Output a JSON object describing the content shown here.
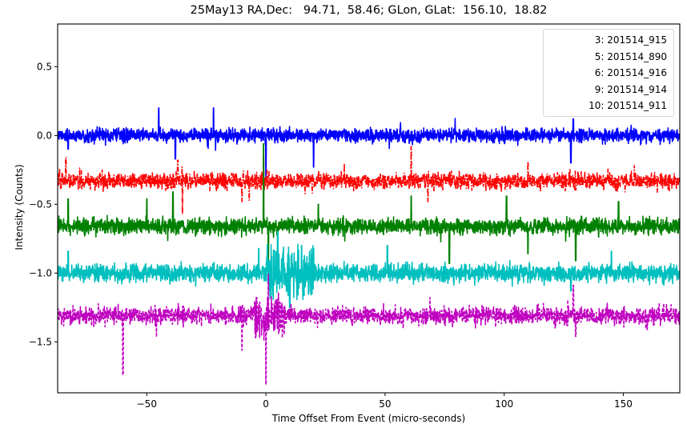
{
  "chart_data": {
    "type": "line",
    "title": "25May13 RA,Dec:   94.71,  58.46; GLon, GLat:  156.10,  18.82",
    "xlabel": "Time Offset From Event (micro-seconds)",
    "ylabel": "Intensity (Counts)",
    "xlim": [
      -87.4,
      173.7
    ],
    "ylim": [
      -1.87,
      0.81
    ],
    "xticks": [
      -50,
      0,
      50,
      100,
      150
    ],
    "xtick_labels": [
      "−50",
      "0",
      "50",
      "100",
      "150"
    ],
    "yticks": [
      0.5,
      0.0,
      -0.5,
      -1.0,
      -1.5
    ],
    "ytick_labels": [
      "0.5",
      "0.0",
      "−0.5",
      "−1.0",
      "−1.5"
    ],
    "grid": false,
    "legend_position": "upper right",
    "series": [
      {
        "name": "3: 201514_915",
        "color": "#0000ff",
        "linestyle": "solid",
        "baseline": 0.0,
        "noise": 0.035,
        "spikes": [
          [
            -83,
            -0.1
          ],
          [
            -45,
            0.2
          ],
          [
            -38,
            -0.17
          ],
          [
            -22,
            0.2
          ],
          [
            0,
            0.31
          ],
          [
            0,
            -0.3
          ],
          [
            20,
            0.27
          ],
          [
            20,
            -0.23
          ],
          [
            128,
            -0.2
          ],
          [
            129,
            0.12
          ]
        ]
      },
      {
        "name": "5: 201514_890",
        "color": "#ff0000",
        "linestyle": "dashdot",
        "baseline": -0.33,
        "noise": 0.04,
        "spikes": [
          [
            -84,
            0.17
          ],
          [
            -35,
            -0.24
          ],
          [
            -37,
            0.15
          ],
          [
            -10,
            -0.15
          ],
          [
            -7,
            -0.14
          ],
          [
            -1,
            0.18
          ],
          [
            61,
            0.25
          ],
          [
            68,
            -0.15
          ],
          [
            110,
            0.14
          ]
        ]
      },
      {
        "name": "6: 201514_916",
        "color": "#008000",
        "linestyle": "solid",
        "baseline": -0.66,
        "noise": 0.04,
        "spikes": [
          [
            -83,
            0.2
          ],
          [
            -50,
            0.2
          ],
          [
            -39,
            0.25
          ],
          [
            -1,
            0.6
          ],
          [
            1,
            -0.25
          ],
          [
            22,
            0.16
          ],
          [
            61,
            0.22
          ],
          [
            77,
            -0.27
          ],
          [
            101,
            0.22
          ],
          [
            110,
            -0.2
          ],
          [
            130,
            -0.25
          ],
          [
            148,
            -0.25
          ],
          [
            148,
            0.18
          ]
        ]
      },
      {
        "name": "9: 201514_914",
        "color": "#00bfbf",
        "linestyle": "solid",
        "baseline": -1.0,
        "noise": 0.045,
        "spikes": [
          [
            -83,
            0.16
          ],
          [
            -3,
            0.18
          ],
          [
            5,
            0.3
          ],
          [
            10,
            -0.25
          ],
          [
            15,
            0.2
          ],
          [
            20,
            0.18
          ],
          [
            51,
            0.2
          ],
          [
            128,
            -0.13
          ],
          [
            145,
            0.16
          ]
        ],
        "burst": [
          0,
          20,
          0.09
        ]
      },
      {
        "name": "10: 201514_911",
        "color": "#bf00bf",
        "linestyle": "dashed",
        "baseline": -1.31,
        "noise": 0.045,
        "spikes": [
          [
            -60,
            0.36
          ],
          [
            -60,
            -0.43
          ],
          [
            -10,
            -0.25
          ],
          [
            0,
            -0.5
          ],
          [
            1,
            0.3
          ],
          [
            5,
            0.12
          ],
          [
            129,
            0.22
          ],
          [
            130,
            -0.15
          ],
          [
            160,
            -0.1
          ]
        ],
        "burst": [
          -5,
          8,
          0.07
        ]
      }
    ]
  }
}
